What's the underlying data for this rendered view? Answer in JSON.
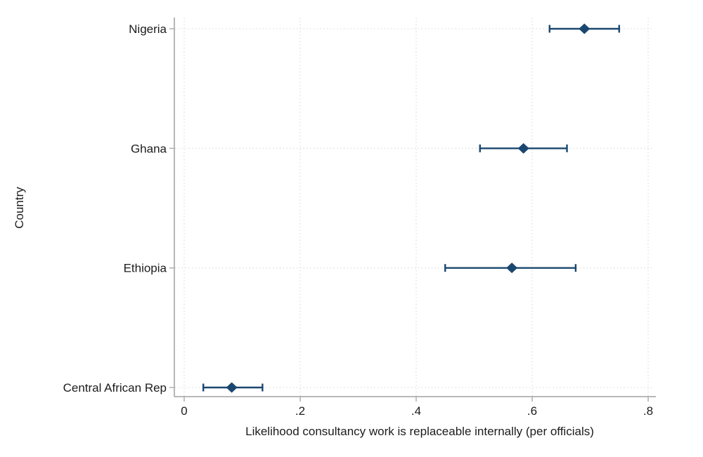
{
  "figure": {
    "background": "#ffffff",
    "marker_color": "#1a476f",
    "axis_color": "#aeaeae",
    "grid_color": "#d6d6d6",
    "text_color": "#1c1c1c"
  },
  "chart_data": {
    "type": "scatter",
    "subtype": "dot-plot-with-error-bars",
    "orientation": "horizontal",
    "title": "",
    "xlabel": "Likelihood consultancy work is replaceable internally (per officials)",
    "ylabel": "Country",
    "xlim": [
      -0.017,
      0.813
    ],
    "x_ticks": [
      {
        "value": 0.0,
        "label": "0"
      },
      {
        "value": 0.2,
        "label": ".2"
      },
      {
        "value": 0.4,
        "label": ".4"
      },
      {
        "value": 0.6,
        "label": ".6"
      },
      {
        "value": 0.8,
        "label": ".8"
      }
    ],
    "grid": "dotted horizontal and vertical gridlines at category rows and x ticks",
    "legend_position": "none",
    "marker_shape": "diamond",
    "categories": [
      "Nigeria",
      "Ghana",
      "Ethiopia",
      "Central African Rep"
    ],
    "points": [
      {
        "category": "Nigeria",
        "estimate": 0.69,
        "ci_low": 0.63,
        "ci_high": 0.75
      },
      {
        "category": "Ghana",
        "estimate": 0.585,
        "ci_low": 0.51,
        "ci_high": 0.66
      },
      {
        "category": "Ethiopia",
        "estimate": 0.565,
        "ci_low": 0.45,
        "ci_high": 0.675
      },
      {
        "category": "Central African Rep",
        "estimate": 0.082,
        "ci_low": 0.033,
        "ci_high": 0.135
      }
    ]
  }
}
